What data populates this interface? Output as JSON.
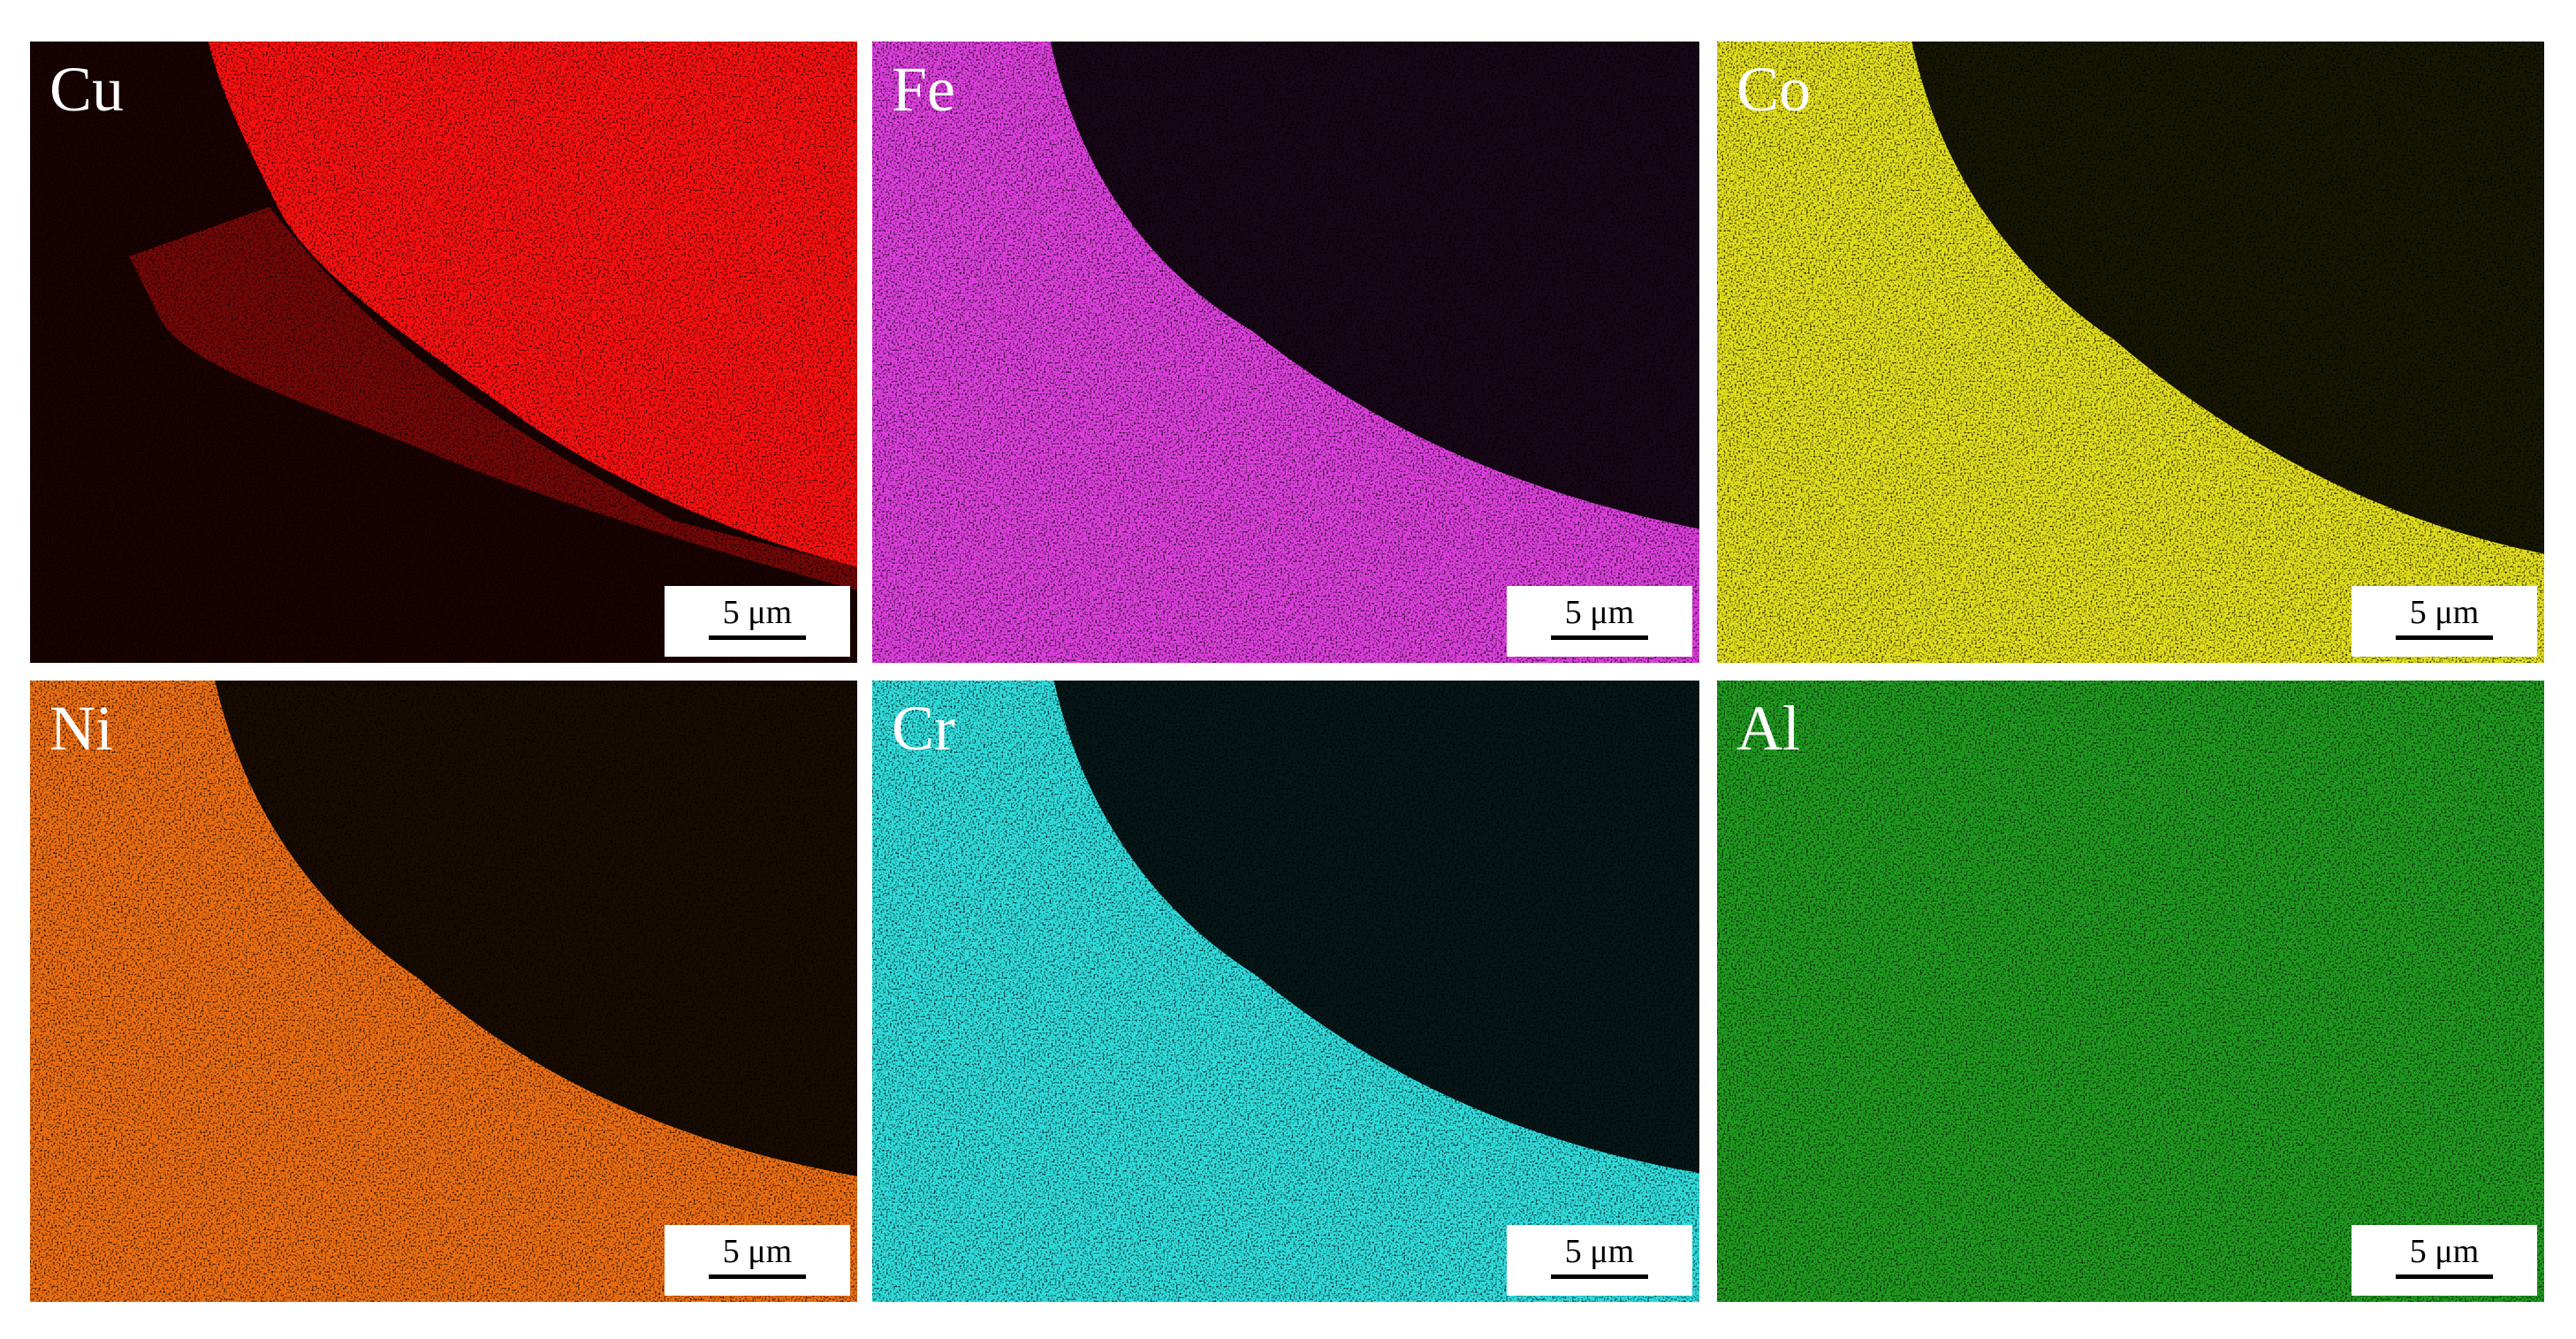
{
  "panels": [
    {
      "label": "Cu",
      "scale_bar": "5 μm"
    },
    {
      "label": "Fe",
      "scale_bar": "5 μm"
    },
    {
      "label": "Co",
      "scale_bar": "5 μm"
    },
    {
      "label": "Ni",
      "scale_bar": "5 μm"
    },
    {
      "label": "Cr",
      "scale_bar": "5 μm"
    },
    {
      "label": "Al",
      "scale_bar": "5 μm"
    }
  ]
}
